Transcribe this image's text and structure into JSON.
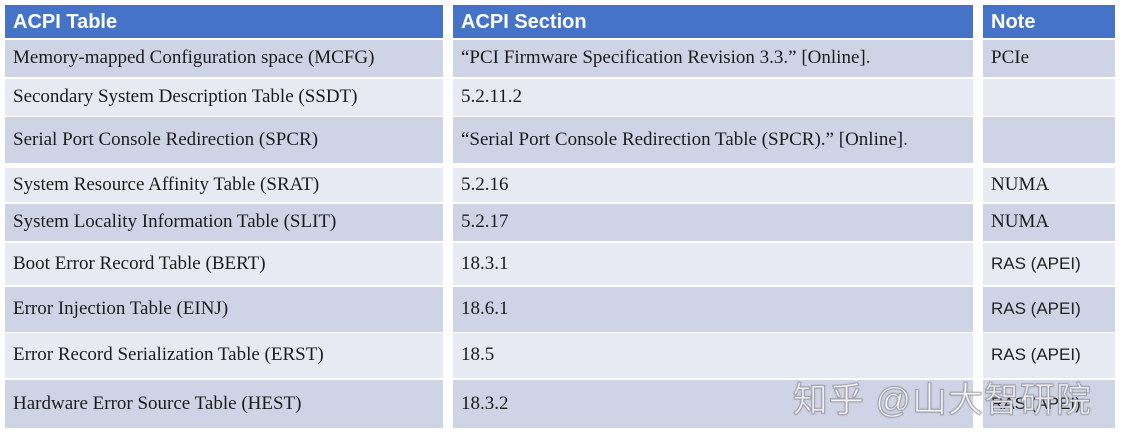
{
  "colors": {
    "header_bg": "#4573C8",
    "header_text": "#FFFFFF",
    "row_dark": "#CED4E6",
    "row_light": "#E8EAF3",
    "body_text": "#1B1B1B"
  },
  "table": {
    "columns": {
      "acpi_table": "ACPI Table",
      "acpi_section": "ACPI Section",
      "note": "Note"
    },
    "rows": [
      {
        "acpi_table": "Memory-mapped Configuration space (MCFG)",
        "acpi_section": "“PCI Firmware Specification Revision 3.3.” [Online].",
        "note": "PCIe"
      },
      {
        "acpi_table": "Secondary System Description Table (SSDT)",
        "acpi_section": "5.2.11.2",
        "note": ""
      },
      {
        "acpi_table": "Serial Port Console Redirection (SPCR)",
        "acpi_section": "“Serial Port Console Redirection Table (SPCR).” [Online].",
        "note": ""
      },
      {
        "acpi_table": "System Resource Affinity Table (SRAT)",
        "acpi_section": "5.2.16",
        "note": "NUMA"
      },
      {
        "acpi_table": "System Locality Information Table (SLIT)",
        "acpi_section": "5.2.17",
        "note": "NUMA"
      },
      {
        "acpi_table": "Boot Error Record Table (BERT)",
        "acpi_section": "18.3.1",
        "note": "RAS (APEI)"
      },
      {
        "acpi_table": "Error Injection Table (EINJ)",
        "acpi_section": "18.6.1",
        "note": "RAS (APEI)"
      },
      {
        "acpi_table": "Error Record Serialization Table (ERST)",
        "acpi_section": "18.5",
        "note": "RAS (APEI)"
      },
      {
        "acpi_table": "Hardware Error Source Table (HEST)",
        "acpi_section": "18.3.2",
        "note": "RAS (APEI)"
      }
    ]
  },
  "watermark": {
    "text": "知乎 @山大智研院"
  }
}
